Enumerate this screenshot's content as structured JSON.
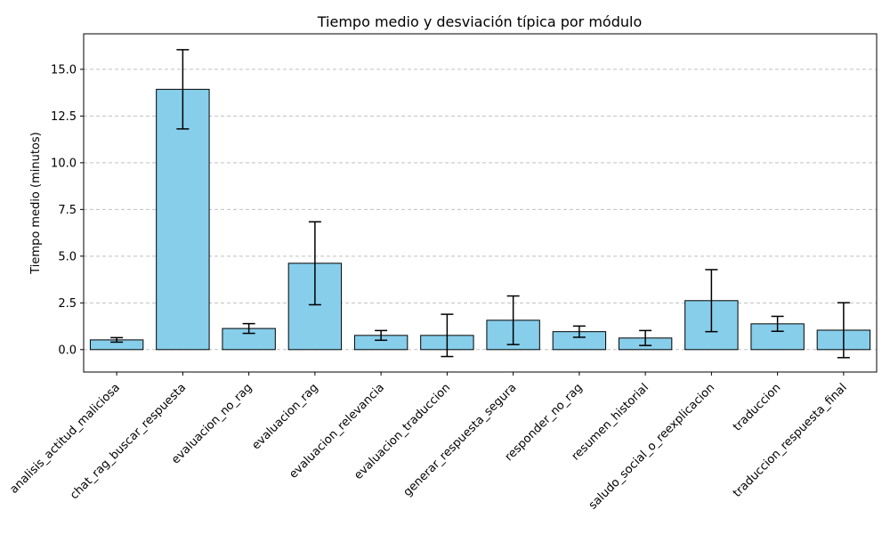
{
  "chart_data": {
    "type": "bar",
    "title": "Tiempo medio y desviación típica por módulo",
    "xlabel": "",
    "ylabel": "Tiempo medio (minutos)",
    "categories": [
      "analisis_actitud_maliciosa",
      "chat_rag_buscar_respuesta",
      "evaluacion_no_rag",
      "evaluacion_rag",
      "evaluacion_relevancia",
      "evaluacion_traduccion",
      "generar_respuesta_segura",
      "responder_no_rag",
      "resumen_historial",
      "saludo_social_o_reexplicacion",
      "traduccion",
      "traduccion_respuesta_final"
    ],
    "series": [
      {
        "values": [
          0.52,
          13.93,
          1.13,
          4.62,
          0.76,
          0.76,
          1.57,
          0.96,
          0.62,
          2.62,
          1.38,
          1.04
        ],
        "error": [
          0.12,
          2.12,
          0.26,
          2.22,
          0.26,
          1.13,
          1.3,
          0.3,
          0.4,
          1.66,
          0.4,
          1.47
        ]
      }
    ],
    "ylim": [
      -1.2,
      16.9
    ],
    "yticks": [
      0.0,
      2.5,
      5.0,
      7.5,
      10.0,
      12.5,
      15.0
    ],
    "ytick_labels": [
      "0.0",
      "2.5",
      "5.0",
      "7.5",
      "10.0",
      "12.5",
      "15.0"
    ],
    "grid": "y-dashed",
    "colors": {
      "bar": "#87ceeb",
      "edge": "#000000",
      "error": "#000000",
      "grid": "#c0c0c0"
    }
  }
}
